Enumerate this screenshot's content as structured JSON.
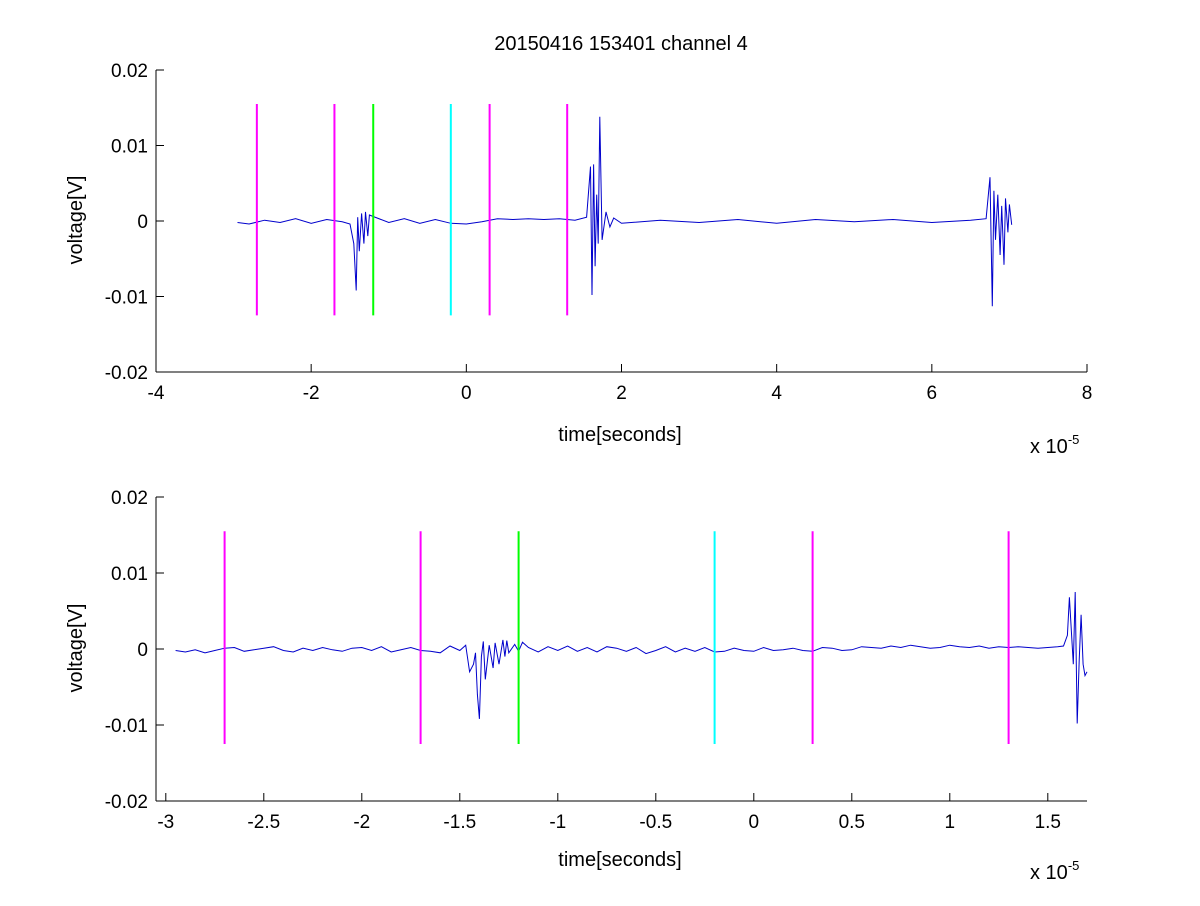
{
  "figure": {
    "title": "20150416 153401 channel 4"
  },
  "chart_data": [
    {
      "type": "line",
      "xlabel": "time[seconds]",
      "ylabel": "voltage[V]",
      "xlim": [
        -4,
        8
      ],
      "ylim": [
        -0.02,
        0.02
      ],
      "x_multiplier": "x 10",
      "x_exponent": "-5",
      "xticks": [
        -4,
        -2,
        0,
        2,
        4,
        6,
        8
      ],
      "xtick_labels": [
        "-4",
        "-2",
        "0",
        "2",
        "4",
        "6",
        "8"
      ],
      "yticks": [
        -0.02,
        -0.01,
        0,
        0.01,
        0.02
      ],
      "ytick_labels": [
        "-0.02",
        "-0.01",
        "0",
        "0.01",
        "0.02"
      ],
      "grid": false,
      "markers": [
        {
          "x": -2.7,
          "ymin": -0.0125,
          "ymax": 0.0155,
          "color": "#ff00ff"
        },
        {
          "x": -1.7,
          "ymin": -0.0125,
          "ymax": 0.0155,
          "color": "#ff00ff"
        },
        {
          "x": -1.2,
          "ymin": -0.0125,
          "ymax": 0.0155,
          "color": "#00ff00"
        },
        {
          "x": -0.2,
          "ymin": -0.0125,
          "ymax": 0.0155,
          "color": "#00ffff"
        },
        {
          "x": 0.3,
          "ymin": -0.0125,
          "ymax": 0.0155,
          "color": "#ff00ff"
        },
        {
          "x": 1.3,
          "ymin": -0.0125,
          "ymax": 0.0155,
          "color": "#ff00ff"
        }
      ],
      "series": [
        {
          "color": "#0000cc",
          "x": [
            -2.95,
            -2.8,
            -2.6,
            -2.4,
            -2.2,
            -2.0,
            -1.8,
            -1.6,
            -1.5,
            -1.45,
            -1.42,
            -1.4,
            -1.38,
            -1.35,
            -1.32,
            -1.3,
            -1.27,
            -1.25,
            -1.2,
            -1.1,
            -1.0,
            -0.8,
            -0.6,
            -0.4,
            -0.2,
            0.0,
            0.2,
            0.4,
            0.6,
            0.8,
            1.0,
            1.2,
            1.4,
            1.55,
            1.6,
            1.62,
            1.64,
            1.66,
            1.68,
            1.7,
            1.72,
            1.75,
            1.8,
            1.85,
            1.9,
            2.0,
            2.5,
            3.0,
            3.5,
            4.0,
            4.5,
            5.0,
            5.5,
            6.0,
            6.5,
            6.7,
            6.75,
            6.78,
            6.8,
            6.82,
            6.85,
            6.88,
            6.9,
            6.93,
            6.95,
            6.98,
            7.0,
            7.03
          ],
          "y": [
            -0.0002,
            -0.0004,
            0.0001,
            -0.0002,
            0.0003,
            -0.0003,
            0.0002,
            -0.0001,
            -0.0004,
            -0.003,
            -0.0092,
            0.0005,
            -0.004,
            0.001,
            -0.003,
            0.0012,
            -0.002,
            0.0008,
            0.0006,
            0.0002,
            -0.0002,
            0.0003,
            -0.0003,
            0.0002,
            -0.0003,
            -0.0004,
            -0.0001,
            0.0003,
            0.0002,
            0.0003,
            0.0002,
            0.0003,
            0.0001,
            0.0005,
            0.0072,
            -0.0098,
            0.0075,
            -0.006,
            0.0035,
            -0.003,
            0.0138,
            -0.0025,
            0.0012,
            -0.0008,
            0.0004,
            -0.0003,
            0.0001,
            -0.0002,
            0.0002,
            -0.0003,
            0.0002,
            -0.0001,
            0.0002,
            -0.0002,
            0.0001,
            0.0003,
            0.0058,
            -0.0113,
            0.004,
            -0.0025,
            0.0035,
            -0.0045,
            0.002,
            -0.0058,
            0.003,
            -0.0015,
            0.0022,
            -0.0005
          ]
        }
      ]
    },
    {
      "type": "line",
      "xlabel": "time[seconds]",
      "ylabel": "voltage[V]",
      "xlim": [
        -3.05,
        1.7
      ],
      "ylim": [
        -0.02,
        0.02
      ],
      "x_multiplier": "x 10",
      "x_exponent": "-5",
      "xticks": [
        -3,
        -2.5,
        -2,
        -1.5,
        -1,
        -0.5,
        0,
        0.5,
        1,
        1.5
      ],
      "xtick_labels": [
        "-3",
        "-2.5",
        "-2",
        "-1.5",
        "-1",
        "-0.5",
        "0",
        "0.5",
        "1",
        "1.5"
      ],
      "yticks": [
        -0.02,
        -0.01,
        0,
        0.01,
        0.02
      ],
      "ytick_labels": [
        "-0.02",
        "-0.01",
        "0",
        "0.01",
        "0.02"
      ],
      "grid": false,
      "markers": [
        {
          "x": -2.7,
          "ymin": -0.0125,
          "ymax": 0.0155,
          "color": "#ff00ff"
        },
        {
          "x": -1.7,
          "ymin": -0.0125,
          "ymax": 0.0155,
          "color": "#ff00ff"
        },
        {
          "x": -1.2,
          "ymin": -0.0125,
          "ymax": 0.0155,
          "color": "#00ff00"
        },
        {
          "x": -0.2,
          "ymin": -0.0125,
          "ymax": 0.0155,
          "color": "#00ffff"
        },
        {
          "x": 0.3,
          "ymin": -0.0125,
          "ymax": 0.0155,
          "color": "#ff00ff"
        },
        {
          "x": 1.3,
          "ymin": -0.0125,
          "ymax": 0.0155,
          "color": "#ff00ff"
        }
      ],
      "series": [
        {
          "color": "#0000cc",
          "x": [
            -2.95,
            -2.9,
            -2.85,
            -2.8,
            -2.75,
            -2.7,
            -2.65,
            -2.6,
            -2.55,
            -2.5,
            -2.45,
            -2.4,
            -2.35,
            -2.3,
            -2.25,
            -2.2,
            -2.15,
            -2.1,
            -2.05,
            -2.0,
            -1.95,
            -1.9,
            -1.85,
            -1.8,
            -1.75,
            -1.7,
            -1.65,
            -1.6,
            -1.55,
            -1.5,
            -1.47,
            -1.45,
            -1.43,
            -1.42,
            -1.41,
            -1.4,
            -1.39,
            -1.38,
            -1.37,
            -1.35,
            -1.33,
            -1.32,
            -1.3,
            -1.28,
            -1.27,
            -1.26,
            -1.25,
            -1.22,
            -1.2,
            -1.18,
            -1.15,
            -1.1,
            -1.05,
            -1.0,
            -0.95,
            -0.9,
            -0.85,
            -0.8,
            -0.75,
            -0.7,
            -0.65,
            -0.6,
            -0.55,
            -0.5,
            -0.45,
            -0.4,
            -0.35,
            -0.3,
            -0.25,
            -0.2,
            -0.15,
            -0.1,
            -0.05,
            0.0,
            0.05,
            0.1,
            0.15,
            0.2,
            0.25,
            0.3,
            0.35,
            0.4,
            0.45,
            0.5,
            0.55,
            0.6,
            0.65,
            0.7,
            0.75,
            0.8,
            0.85,
            0.9,
            0.95,
            1.0,
            1.05,
            1.1,
            1.15,
            1.2,
            1.25,
            1.3,
            1.35,
            1.4,
            1.45,
            1.5,
            1.55,
            1.58,
            1.6,
            1.61,
            1.62,
            1.63,
            1.64,
            1.65,
            1.66,
            1.67,
            1.68,
            1.69,
            1.7
          ],
          "y": [
            -0.0002,
            -0.0004,
            -0.0001,
            -0.0005,
            -0.0002,
            0.0001,
            0.0002,
            -0.0003,
            -0.0001,
            0.0001,
            0.0003,
            -0.0002,
            -0.0004,
            0.0001,
            -0.0002,
            0.0002,
            -0.0001,
            -0.0003,
            0.0001,
            0.0002,
            -0.0002,
            0.0003,
            -0.0004,
            -0.0001,
            0.0002,
            -0.0002,
            -0.0003,
            -0.0005,
            0.0004,
            -0.0002,
            0.0005,
            -0.003,
            -0.002,
            -0.0005,
            -0.006,
            -0.0092,
            -0.001,
            0.001,
            -0.004,
            0.0005,
            -0.0025,
            0.0008,
            -0.002,
            0.0012,
            -0.001,
            0.0011,
            -0.0005,
            0.0006,
            -0.0003,
            0.0009,
            0.0002,
            -0.0004,
            0.0003,
            -0.0002,
            0.0004,
            -0.0003,
            0.0002,
            -0.0004,
            0.0003,
            0.0001,
            -0.0003,
            0.0002,
            -0.0006,
            -0.0002,
            0.0003,
            -0.0004,
            0.0001,
            -0.0003,
            0.0002,
            -0.0004,
            -0.0003,
            0.0001,
            -0.0002,
            -0.0003,
            0.0002,
            -0.0002,
            -0.0001,
            0.0001,
            -0.0002,
            -0.0003,
            0.0002,
            0.0001,
            -0.0002,
            -0.0001,
            0.0003,
            0.0002,
            0.0001,
            0.0004,
            0.0002,
            0.0005,
            0.0003,
            0.0001,
            0.0002,
            0.0005,
            0.0003,
            0.0002,
            0.0004,
            0.0001,
            0.0003,
            0.0002,
            0.0003,
            0.0002,
            0.0001,
            0.0002,
            0.0003,
            0.0004,
            0.0018,
            0.0068,
            0.0025,
            -0.002,
            0.0075,
            -0.0098,
            -0.0015,
            0.0045,
            -0.002,
            -0.0035,
            -0.003
          ]
        }
      ]
    }
  ]
}
